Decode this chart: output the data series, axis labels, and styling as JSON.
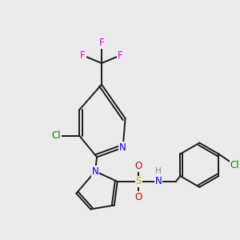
{
  "background_color": "#ebebeb",
  "bond_color": "#1a1a1a",
  "bond_width": 1.4,
  "figsize": [
    3.0,
    3.0
  ],
  "dpi": 100,
  "colors": {
    "F": "#dd00dd",
    "Cl": "#008800",
    "N": "#0000ee",
    "S": "#bbaa00",
    "O": "#dd0000",
    "H": "#888888",
    "C": "#1a1a1a"
  }
}
